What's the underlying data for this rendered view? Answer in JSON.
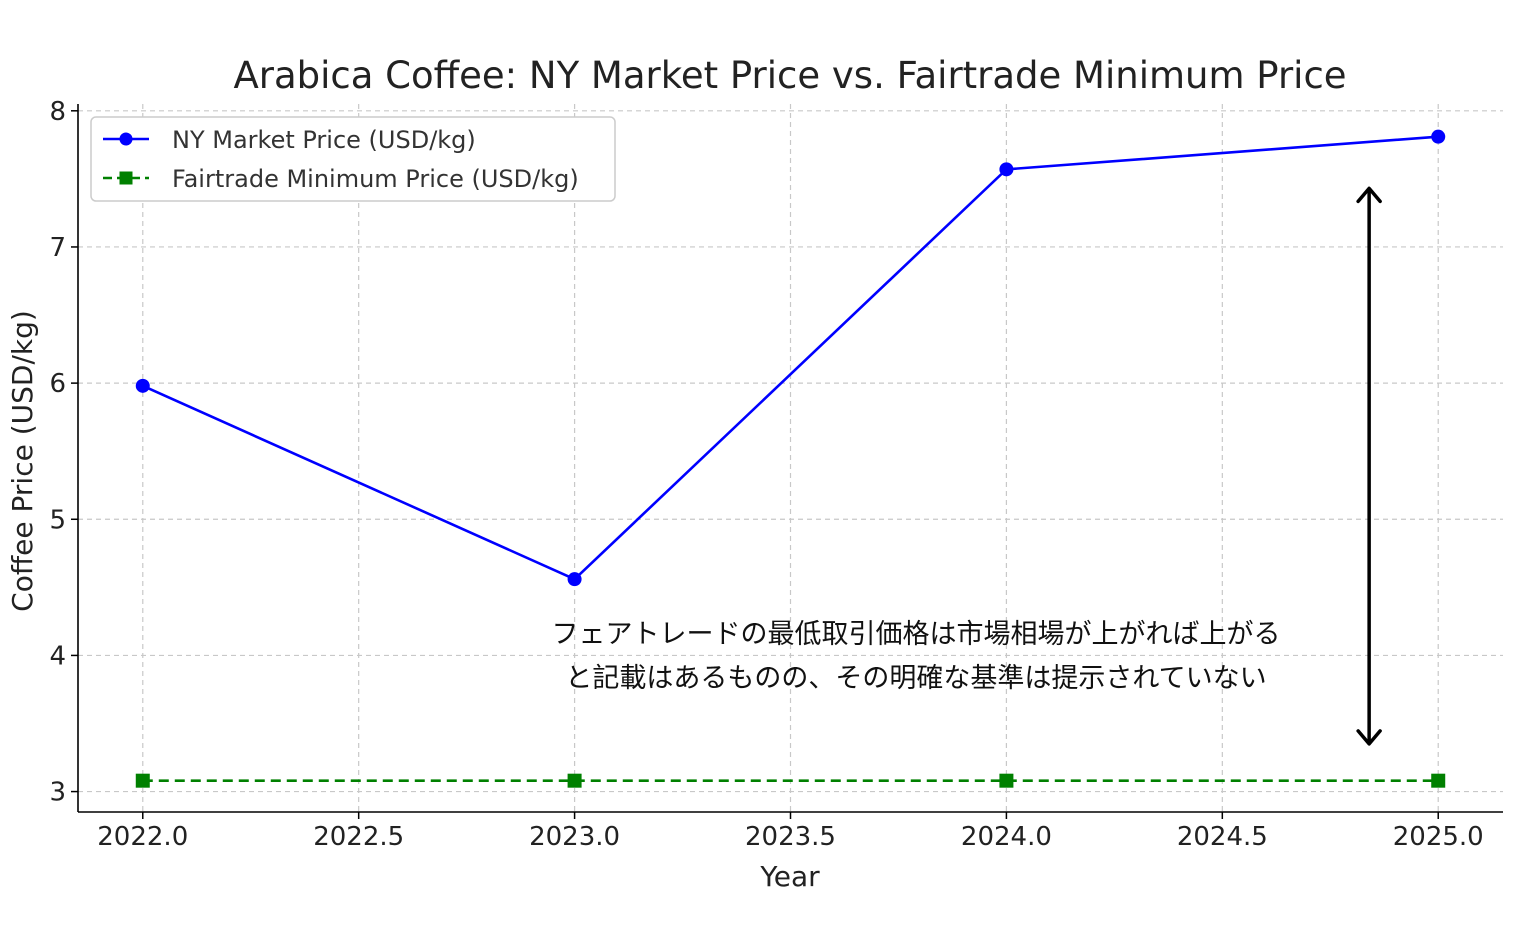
{
  "chart_data": {
    "type": "line",
    "title": "Arabica Coffee: NY Market Price vs. Fairtrade Minimum Price",
    "xlabel": "Year",
    "ylabel": "Coffee Price (USD/kg)",
    "xlim": [
      2021.85,
      2025.15
    ],
    "ylim": [
      2.85,
      8.05
    ],
    "xticks": [
      2022.0,
      2022.5,
      2023.0,
      2023.5,
      2024.0,
      2024.5,
      2025.0
    ],
    "xtick_labels": [
      "2022.0",
      "2022.5",
      "2023.0",
      "2023.5",
      "2024.0",
      "2024.5",
      "2025.0"
    ],
    "yticks": [
      3,
      4,
      5,
      6,
      7,
      8
    ],
    "ytick_labels": [
      "3",
      "4",
      "5",
      "6",
      "7",
      "8"
    ],
    "grid": true,
    "legend_position": "top-left",
    "x": [
      2022,
      2023,
      2024,
      2025
    ],
    "series": [
      {
        "name": "NY Market Price (USD/kg)",
        "values": [
          5.98,
          4.56,
          7.57,
          7.81
        ],
        "color": "#0000ff",
        "marker": "circle",
        "linestyle": "solid"
      },
      {
        "name": "Fairtrade Minimum Price (USD/kg)",
        "values": [
          3.08,
          3.08,
          3.08,
          3.08
        ],
        "color": "#008000",
        "marker": "square",
        "linestyle": "dashed"
      }
    ],
    "annotation": {
      "lines": [
        "フェアトレードの最低取引価格は市場相場が上がれば上がる",
        "と記載はあるものの、その明確な基準は提示されていない"
      ],
      "arrow": {
        "x": 2024.84,
        "y_from": 3.35,
        "y_to": 7.43,
        "style": "double-headed",
        "color": "#000000"
      }
    }
  }
}
